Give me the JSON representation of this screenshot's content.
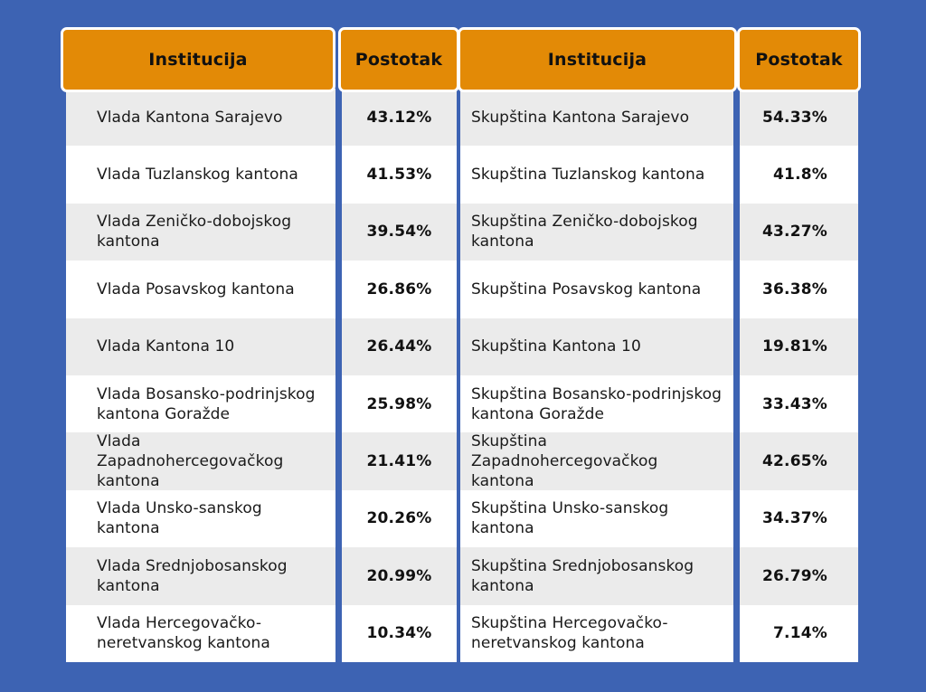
{
  "headers": {
    "left_institution": "Institucija",
    "left_percent": "Postotak",
    "right_institution": "Institucija",
    "right_percent": "Postotak"
  },
  "left": [
    {
      "name": "Vlada Kantona Sarajevo",
      "pct": "43.12%"
    },
    {
      "name": "Vlada Tuzlanskog kantona",
      "pct": "41.53%"
    },
    {
      "name": "Vlada Zeničko-dobojskog kantona",
      "pct": "39.54%"
    },
    {
      "name": "Vlada Posavskog kantona",
      "pct": "26.86%"
    },
    {
      "name": "Vlada Kantona 10",
      "pct": "26.44%"
    },
    {
      "name": "Vlada Bosansko-podrinjskog kantona Goražde",
      "pct": "25.98%"
    },
    {
      "name": "Vlada Zapadnohercegovačkog kantona",
      "pct": "21.41%"
    },
    {
      "name": "Vlada Unsko-sanskog kantona",
      "pct": "20.26%"
    },
    {
      "name": "Vlada Srednjobosanskog kantona",
      "pct": "20.99%"
    },
    {
      "name": "Vlada Hercegovačko-neretvanskog kantona",
      "pct": "10.34%"
    }
  ],
  "right": [
    {
      "name": "Skupština Kantona Sarajevo",
      "pct": "54.33%"
    },
    {
      "name": "Skupština Tuzlanskog kantona",
      "pct": "41.8%"
    },
    {
      "name": "Skupština Zeničko-dobojskog kantona",
      "pct": "43.27%"
    },
    {
      "name": "Skupština Posavskog kantona",
      "pct": "36.38%"
    },
    {
      "name": "Skupština Kantona 10",
      "pct": "19.81%"
    },
    {
      "name": "Skupština Bosansko-podrinjskog kantona Goražde",
      "pct": "33.43%"
    },
    {
      "name": "Skupština Zapadnohercegovačkog kantona",
      "pct": "42.65%"
    },
    {
      "name": "Skupština Unsko-sanskog kantona",
      "pct": "34.37%"
    },
    {
      "name": "Skupština Srednjobosanskog kantona",
      "pct": "26.79%"
    },
    {
      "name": "Skupština Hercegovačko-neretvanskog kantona",
      "pct": "7.14%"
    }
  ],
  "colors": {
    "background": "#3d63b3",
    "header": "#e38a06",
    "row_alt": "#ebebeb",
    "row": "#ffffff"
  }
}
